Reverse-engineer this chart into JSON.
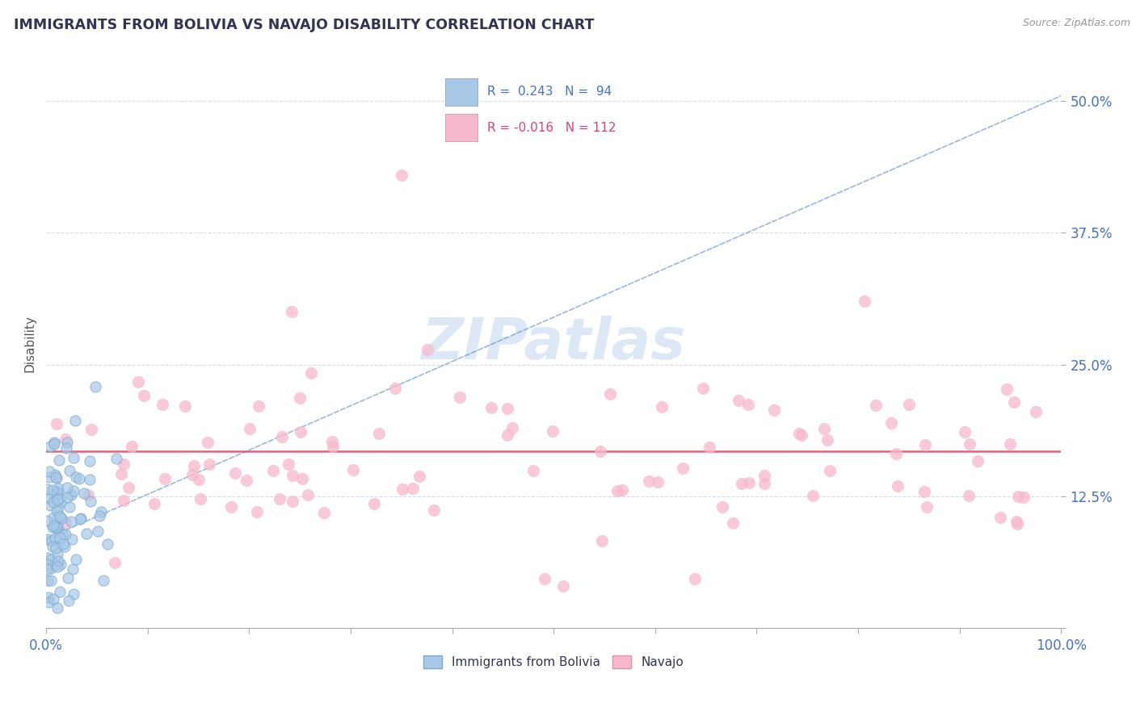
{
  "title": "IMMIGRANTS FROM BOLIVIA VS NAVAJO DISABILITY CORRELATION CHART",
  "source_text": "Source: ZipAtlas.com",
  "ylabel": "Disability",
  "xlim": [
    0.0,
    1.0
  ],
  "ylim": [
    0.0,
    0.54
  ],
  "y_tick_positions": [
    0.0,
    0.125,
    0.25,
    0.375,
    0.5
  ],
  "y_tick_labels": [
    "",
    "12.5%",
    "25.0%",
    "37.5%",
    "50.0%"
  ],
  "blue_R": 0.243,
  "blue_N": 94,
  "pink_R": -0.016,
  "pink_N": 112,
  "trend_blue_color": "#5588cc",
  "trend_pink_color": "#e05070",
  "grid_color": "#c8d4e8",
  "grid_style": "--",
  "watermark_color": "#dce8f5",
  "bg_color": "#ffffff",
  "scatter_blue_color": "#a8c8e8",
  "scatter_pink_color": "#f8b8cc",
  "title_color": "#333355",
  "source_color": "#999999",
  "axis_label_color": "#555555",
  "tick_label_color": "#4472c4",
  "legend_text_color": "#4472c4",
  "legend_r_pink_color": "#e04070",
  "bottom_legend_labels": [
    "Immigrants from Bolivia",
    "Navajo"
  ]
}
